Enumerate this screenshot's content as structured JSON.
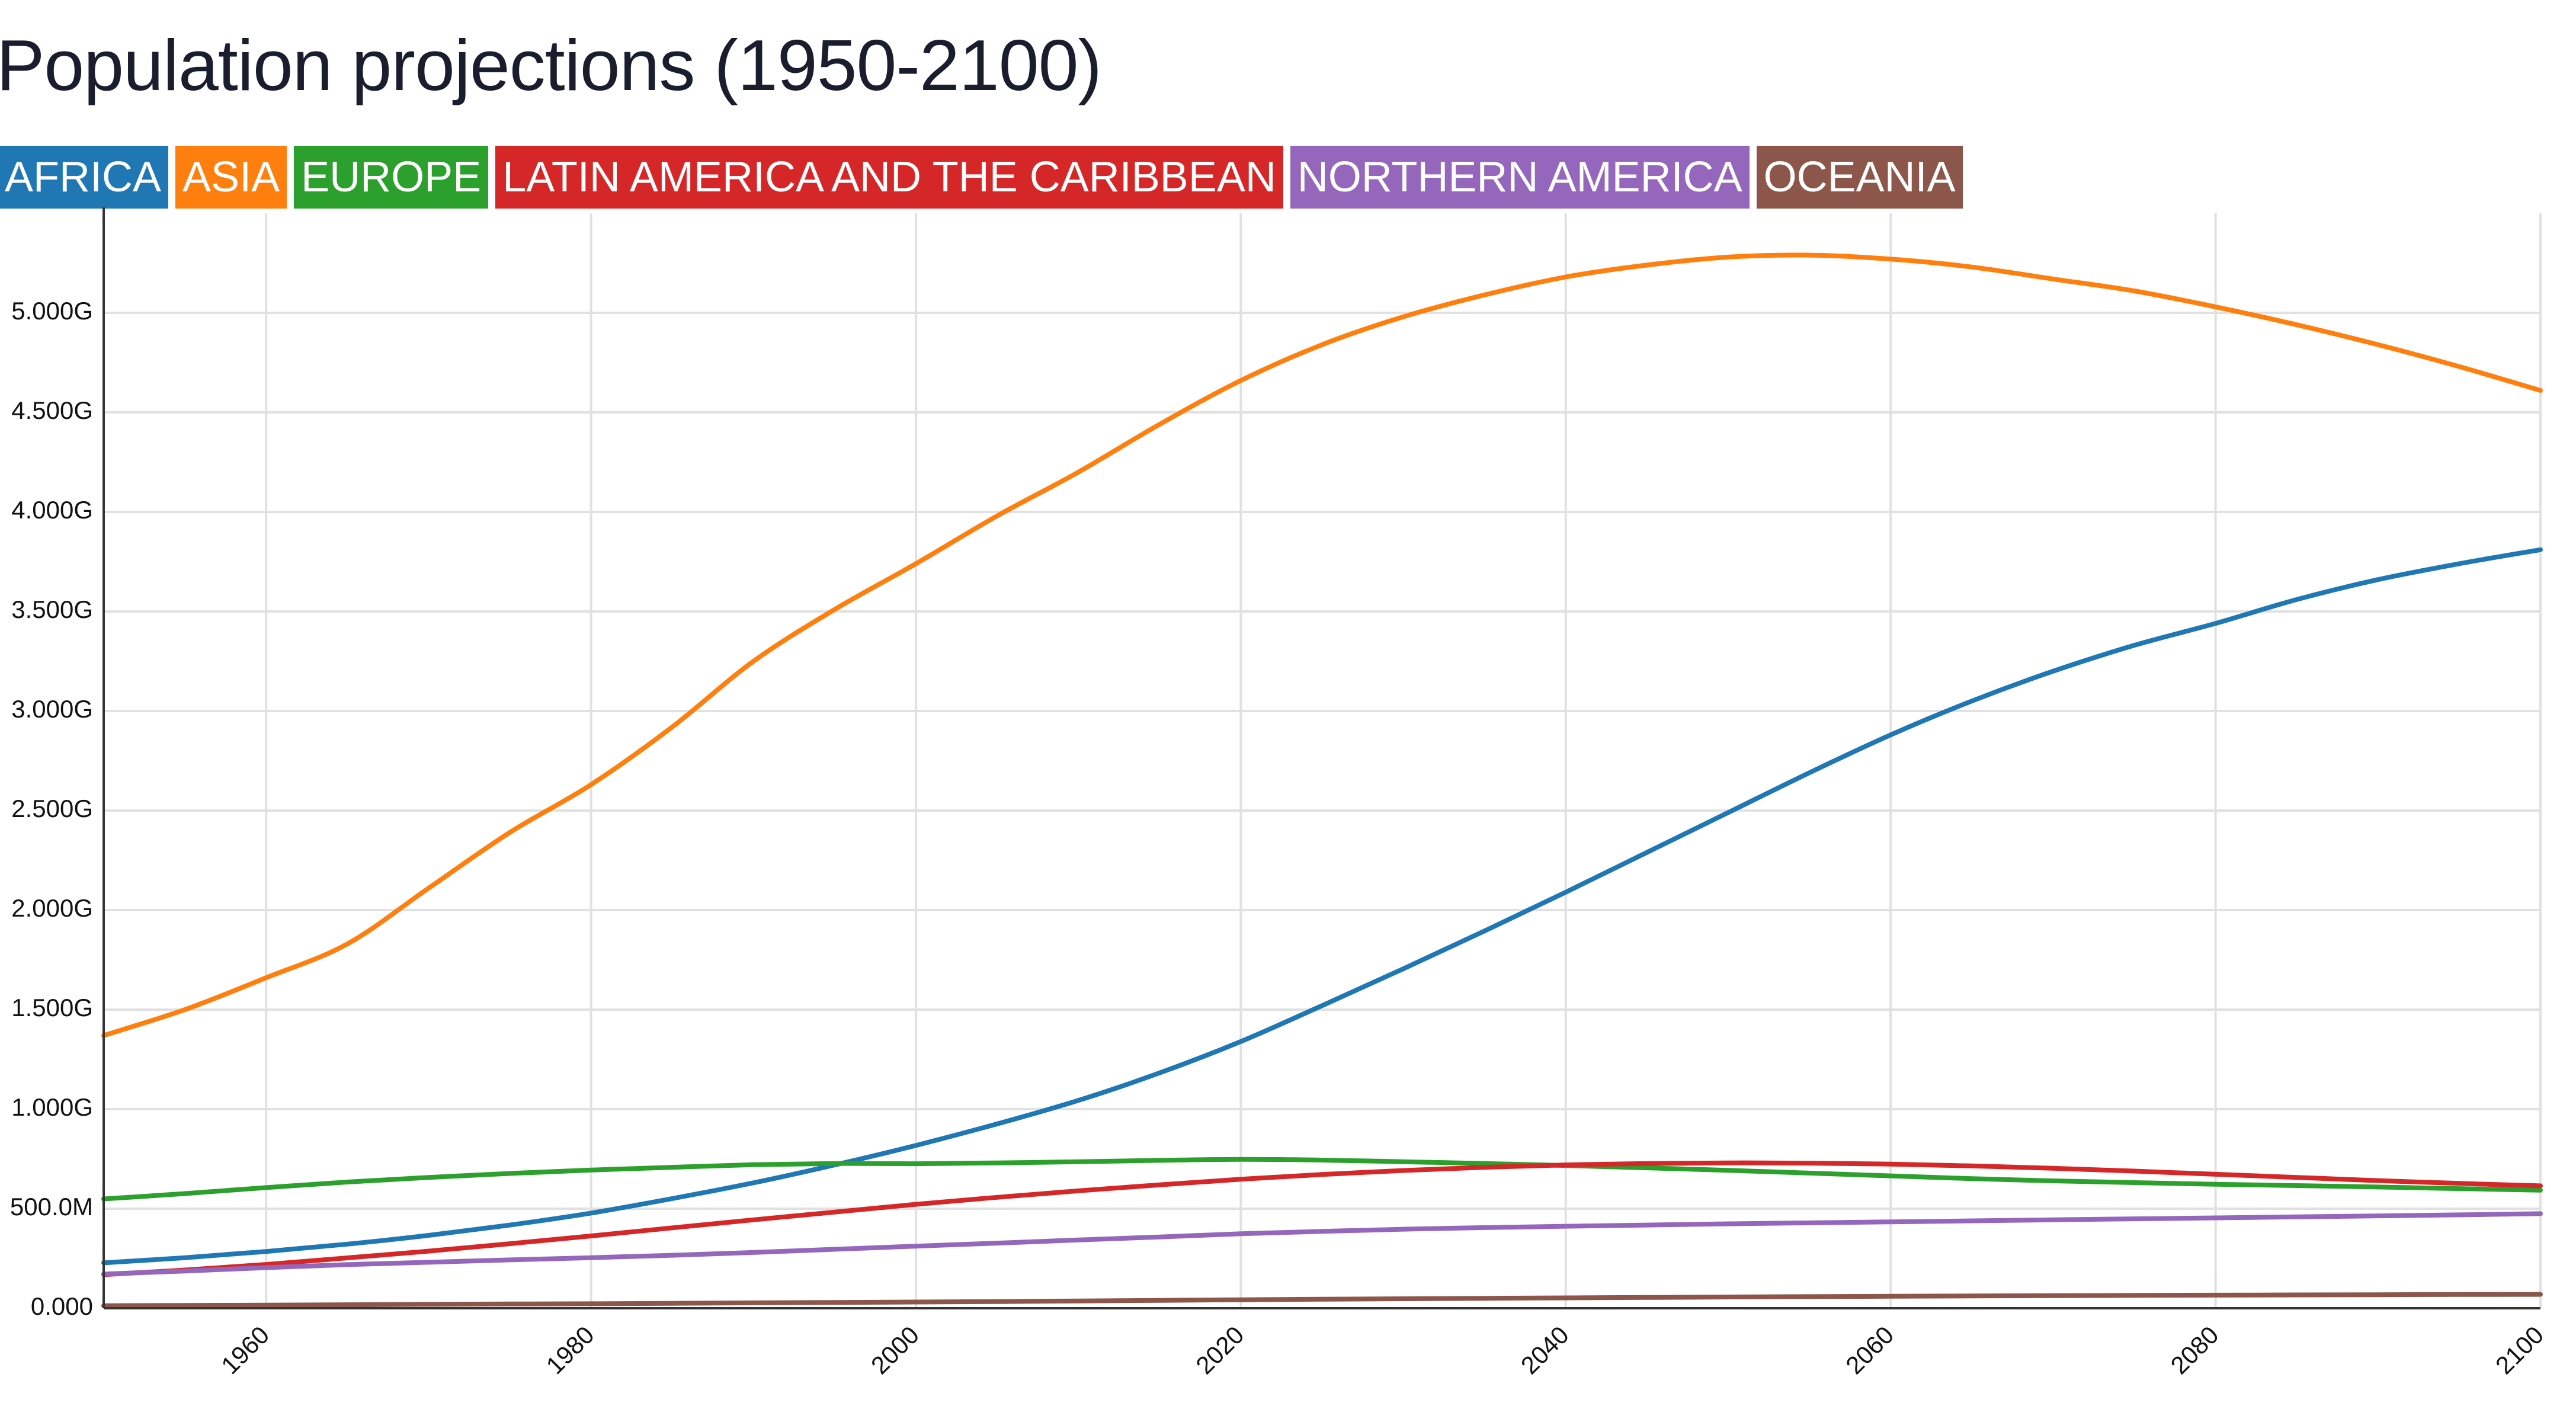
{
  "chart_data": {
    "type": "line",
    "title": "Population projections (1950-2100)",
    "xlabel": "",
    "ylabel": "",
    "xlim": [
      1950,
      2100
    ],
    "ylim": [
      0,
      5500000000
    ],
    "grid": true,
    "legend_position": "top-left",
    "y_ticks": [
      {
        "value": 0,
        "label": "0.000"
      },
      {
        "value": 500000000,
        "label": "500.0M"
      },
      {
        "value": 1000000000,
        "label": "1.000G"
      },
      {
        "value": 1500000000,
        "label": "1.500G"
      },
      {
        "value": 2000000000,
        "label": "2.000G"
      },
      {
        "value": 2500000000,
        "label": "2.500G"
      },
      {
        "value": 3000000000,
        "label": "3.000G"
      },
      {
        "value": 3500000000,
        "label": "3.500G"
      },
      {
        "value": 4000000000,
        "label": "4.000G"
      },
      {
        "value": 4500000000,
        "label": "4.500G"
      },
      {
        "value": 5000000000,
        "label": "5.000G"
      }
    ],
    "x_ticks": [
      {
        "value": 1960,
        "label": "1960"
      },
      {
        "value": 1980,
        "label": "1980"
      },
      {
        "value": 2000,
        "label": "2000"
      },
      {
        "value": 2020,
        "label": "2020"
      },
      {
        "value": 2040,
        "label": "2040"
      },
      {
        "value": 2060,
        "label": "2060"
      },
      {
        "value": 2080,
        "label": "2080"
      },
      {
        "value": 2100,
        "label": "2100"
      }
    ],
    "x": [
      1950,
      1955,
      1960,
      1965,
      1970,
      1975,
      1980,
      1985,
      1990,
      1995,
      2000,
      2005,
      2010,
      2015,
      2020,
      2025,
      2030,
      2035,
      2040,
      2045,
      2050,
      2055,
      2060,
      2065,
      2070,
      2075,
      2080,
      2085,
      2090,
      2095,
      2100
    ],
    "series": [
      {
        "name": "AFRICA",
        "color": "#1f77b4",
        "values": [
          228000000,
          254000000,
          285000000,
          322000000,
          366000000,
          418000000,
          478000000,
          551000000,
          630000000,
          720000000,
          818000000,
          926000000,
          1044000000,
          1182000000,
          1340000000,
          1520000000,
          1705000000,
          1895000000,
          2090000000,
          2290000000,
          2490000000,
          2690000000,
          2880000000,
          3050000000,
          3200000000,
          3330000000,
          3440000000,
          3560000000,
          3660000000,
          3740000000,
          3810000000
        ]
      },
      {
        "name": "ASIA",
        "color": "#ff7f0e",
        "values": [
          1370000000,
          1500000000,
          1660000000,
          1830000000,
          2110000000,
          2390000000,
          2630000000,
          2920000000,
          3250000000,
          3510000000,
          3740000000,
          3980000000,
          4200000000,
          4440000000,
          4660000000,
          4840000000,
          4980000000,
          5090000000,
          5180000000,
          5240000000,
          5280000000,
          5290000000,
          5270000000,
          5230000000,
          5170000000,
          5110000000,
          5030000000,
          4940000000,
          4840000000,
          4730000000,
          4610000000
        ]
      },
      {
        "name": "EUROPE",
        "color": "#2ca02c",
        "values": [
          549000000,
          576000000,
          606000000,
          634000000,
          657000000,
          677000000,
          694000000,
          708000000,
          721000000,
          727000000,
          726000000,
          730000000,
          736000000,
          743000000,
          748000000,
          744000000,
          736000000,
          727000000,
          717000000,
          705000000,
          693000000,
          679000000,
          665000000,
          651000000,
          640000000,
          631000000,
          623000000,
          616000000,
          609000000,
          601000000,
          593000000
        ]
      },
      {
        "name": "LATIN AMERICA AND THE CARIBBEAN",
        "color": "#d62728",
        "values": [
          169000000,
          192000000,
          220000000,
          253000000,
          287000000,
          324000000,
          363000000,
          404000000,
          444000000,
          483000000,
          522000000,
          557000000,
          590000000,
          620000000,
          648000000,
          672000000,
          692000000,
          708000000,
          720000000,
          727000000,
          730000000,
          729000000,
          724000000,
          715000000,
          703000000,
          689000000,
          673000000,
          657000000,
          641000000,
          627000000,
          615000000
        ]
      },
      {
        "name": "NORTHERN AMERICA",
        "color": "#9467bd",
        "values": [
          172000000,
          187000000,
          204000000,
          219000000,
          231000000,
          243000000,
          254000000,
          266000000,
          280000000,
          296000000,
          312000000,
          327000000,
          343000000,
          358000000,
          374000000,
          386000000,
          397000000,
          405000000,
          412000000,
          418000000,
          424000000,
          429000000,
          434000000,
          439000000,
          444000000,
          449000000,
          454000000,
          459000000,
          464000000,
          469000000,
          475000000
        ]
      },
      {
        "name": "OCEANIA",
        "color": "#8c564b",
        "values": [
          12700000,
          14300000,
          15800000,
          17600000,
          19700000,
          21300000,
          22700000,
          24600000,
          27000000,
          29100000,
          31300000,
          33600000,
          36700000,
          39700000,
          42700000,
          45300000,
          47700000,
          50000000,
          52200000,
          54300000,
          56400000,
          58300000,
          60100000,
          61700000,
          63200000,
          64600000,
          65900000,
          67000000,
          68000000,
          68900000,
          69700000
        ]
      }
    ]
  }
}
